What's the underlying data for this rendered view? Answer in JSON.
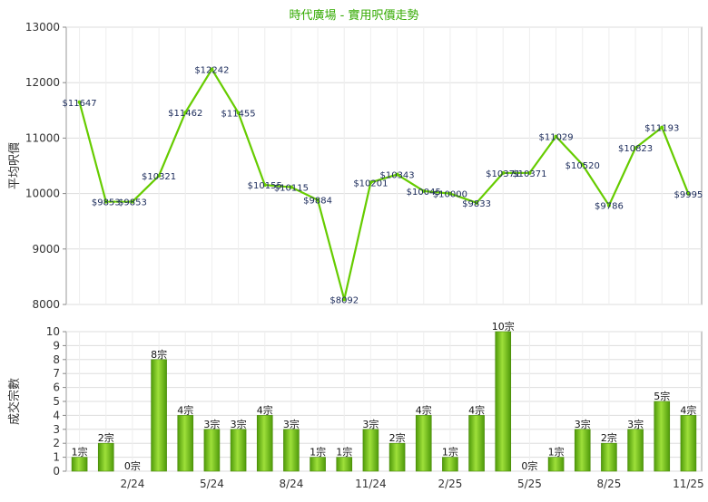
{
  "title": "時代廣場 - 實用呎價走勢",
  "chart_data": [
    {
      "type": "line",
      "ylabel": "平均呎價",
      "ylim": [
        8000,
        13000
      ],
      "yticks": [
        8000,
        9000,
        10000,
        11000,
        12000,
        13000
      ],
      "ytick_labels": [
        "8000",
        "9000",
        "10000",
        "11000",
        "12000",
        "13000"
      ],
      "grid": true,
      "line_color": "#66cc00",
      "values": [
        11647,
        9853,
        9853,
        10321,
        11462,
        12242,
        11455,
        10155,
        10115,
        9884,
        8092,
        10201,
        10343,
        10045,
        10000,
        9833,
        10371,
        10371,
        11029,
        10520,
        9786,
        10823,
        11193,
        9995
      ],
      "labels": [
        "$11647",
        "$9853",
        "$9853",
        "$10321",
        "$11462",
        "$12242",
        "$11455",
        "$10155",
        "$10115",
        "$9884",
        "$8092",
        "$10201",
        "$10343",
        "$10045",
        "$10000",
        "$9833",
        "$10371",
        "$10371",
        "$11029",
        "$10520",
        "$9786",
        "$10823",
        "$11193",
        "$9995"
      ],
      "dotted_segments": [
        [
          1,
          2
        ],
        [
          16,
          17
        ]
      ]
    },
    {
      "type": "bar",
      "ylabel": "成交宗數",
      "ylim": [
        0,
        10
      ],
      "yticks": [
        0,
        1,
        2,
        3,
        4,
        5,
        6,
        7,
        8,
        9,
        10
      ],
      "ytick_labels": [
        "0",
        "1",
        "2",
        "3",
        "4",
        "5",
        "6",
        "7",
        "8",
        "9",
        "10"
      ],
      "grid": true,
      "bar_color": "#66bb11",
      "values": [
        1,
        2,
        0,
        8,
        4,
        3,
        3,
        4,
        3,
        1,
        1,
        3,
        2,
        4,
        1,
        4,
        10,
        0,
        1,
        3,
        2,
        3,
        5,
        4
      ],
      "labels": [
        "1宗",
        "2宗",
        "0宗",
        "8宗",
        "4宗",
        "3宗",
        "3宗",
        "4宗",
        "3宗",
        "1宗",
        "1宗",
        "3宗",
        "2宗",
        "4宗",
        "1宗",
        "4宗",
        "10宗",
        "0宗",
        "1宗",
        "3宗",
        "2宗",
        "3宗",
        "5宗",
        "4宗"
      ],
      "xtick_labels": [
        "2/24",
        "5/24",
        "8/24",
        "11/24",
        "2/25",
        "5/25",
        "8/25",
        "11/25"
      ],
      "xtick_index": [
        2,
        5,
        8,
        11,
        14,
        17,
        20,
        23
      ]
    }
  ]
}
